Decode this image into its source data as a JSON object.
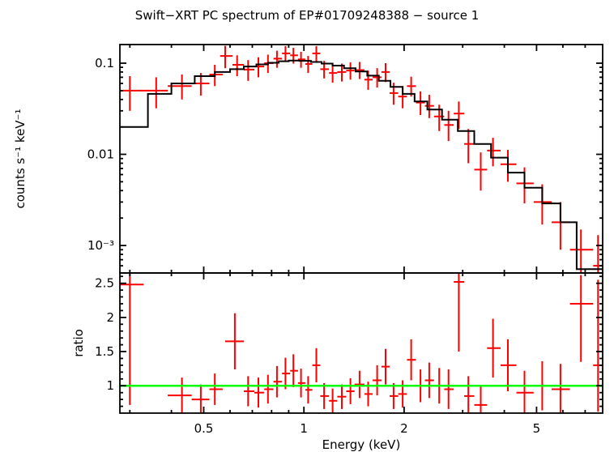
{
  "chart_data": {
    "type": "scatter",
    "title": "Swift−XRT PC spectrum of EP#01709248388 − source 1",
    "xlabel": "Energy (keV)",
    "xscale": "log",
    "xlim": [
      0.28,
      7.9
    ],
    "xticks": [
      0.5,
      1,
      2,
      5
    ],
    "xtick_labels": [
      "0.5",
      "1",
      "2",
      "5"
    ],
    "grid": false,
    "legend": "none",
    "colors": {
      "data": "#ff0000",
      "model": "#000000",
      "unity": "#00ff00",
      "frame": "#000000"
    },
    "panels": [
      {
        "name": "spectrum",
        "ylabel": "counts s⁻¹ keV⁻¹",
        "yscale": "log",
        "ylim": [
          0.0005,
          0.16
        ],
        "yticks": [
          0.1,
          0.01,
          0.001
        ],
        "ytick_labels": [
          "0.1",
          "0.01",
          "10⁻³"
        ],
        "data_points": [
          [
            0.3,
            0.28,
            0.33,
            0.05,
            0.03,
            0.072
          ],
          [
            0.36,
            0.33,
            0.39,
            0.05,
            0.032,
            0.07
          ],
          [
            0.43,
            0.39,
            0.46,
            0.056,
            0.04,
            0.075
          ],
          [
            0.49,
            0.46,
            0.52,
            0.06,
            0.044,
            0.078
          ],
          [
            0.54,
            0.52,
            0.57,
            0.075,
            0.056,
            0.096
          ],
          [
            0.58,
            0.56,
            0.61,
            0.12,
            0.088,
            0.155
          ],
          [
            0.63,
            0.61,
            0.66,
            0.096,
            0.072,
            0.122
          ],
          [
            0.68,
            0.66,
            0.71,
            0.085,
            0.064,
            0.108
          ],
          [
            0.73,
            0.71,
            0.76,
            0.092,
            0.07,
            0.116
          ],
          [
            0.78,
            0.76,
            0.81,
            0.1,
            0.078,
            0.124
          ],
          [
            0.83,
            0.81,
            0.86,
            0.112,
            0.089,
            0.137
          ],
          [
            0.88,
            0.86,
            0.91,
            0.128,
            0.104,
            0.154
          ],
          [
            0.93,
            0.91,
            0.96,
            0.122,
            0.099,
            0.147
          ],
          [
            0.98,
            0.96,
            1.01,
            0.11,
            0.089,
            0.133
          ],
          [
            1.03,
            1.01,
            1.06,
            0.098,
            0.078,
            0.12
          ],
          [
            1.09,
            1.06,
            1.12,
            0.128,
            0.104,
            0.154
          ],
          [
            1.15,
            1.12,
            1.19,
            0.086,
            0.068,
            0.106
          ],
          [
            1.22,
            1.19,
            1.26,
            0.078,
            0.061,
            0.097
          ],
          [
            1.3,
            1.26,
            1.34,
            0.08,
            0.063,
            0.099
          ],
          [
            1.38,
            1.34,
            1.42,
            0.083,
            0.066,
            0.102
          ],
          [
            1.47,
            1.42,
            1.52,
            0.084,
            0.067,
            0.103
          ],
          [
            1.56,
            1.52,
            1.61,
            0.066,
            0.051,
            0.083
          ],
          [
            1.66,
            1.61,
            1.71,
            0.07,
            0.054,
            0.088
          ],
          [
            1.76,
            1.71,
            1.81,
            0.08,
            0.062,
            0.1
          ],
          [
            1.86,
            1.81,
            1.92,
            0.047,
            0.035,
            0.061
          ],
          [
            1.98,
            1.92,
            2.04,
            0.043,
            0.032,
            0.056
          ],
          [
            2.1,
            2.04,
            2.17,
            0.056,
            0.043,
            0.071
          ],
          [
            2.24,
            2.17,
            2.31,
            0.037,
            0.027,
            0.049
          ],
          [
            2.38,
            2.31,
            2.46,
            0.034,
            0.025,
            0.045
          ],
          [
            2.55,
            2.46,
            2.64,
            0.026,
            0.018,
            0.035
          ],
          [
            2.72,
            2.64,
            2.82,
            0.021,
            0.014,
            0.03
          ],
          [
            2.92,
            2.82,
            3.03,
            0.028,
            0.019,
            0.038
          ],
          [
            3.12,
            3.03,
            3.25,
            0.013,
            0.008,
            0.019
          ],
          [
            3.4,
            3.25,
            3.55,
            0.0068,
            0.004,
            0.0105
          ],
          [
            3.7,
            3.55,
            3.9,
            0.011,
            0.0074,
            0.0152
          ],
          [
            4.1,
            3.9,
            4.35,
            0.0078,
            0.005,
            0.0112
          ],
          [
            4.6,
            4.35,
            4.9,
            0.0048,
            0.0029,
            0.0072
          ],
          [
            5.2,
            4.9,
            5.55,
            0.003,
            0.0017,
            0.0047
          ],
          [
            5.9,
            5.55,
            6.3,
            0.0018,
            0.0009,
            0.003
          ],
          [
            6.8,
            6.3,
            7.4,
            0.0009,
            0.0005,
            0.0015
          ],
          [
            7.65,
            7.4,
            7.9,
            0.0006,
            0.00028,
            0.0013
          ]
        ],
        "model_steps": [
          [
            0.28,
            0.34,
            0.02
          ],
          [
            0.34,
            0.4,
            0.046
          ],
          [
            0.4,
            0.47,
            0.06
          ],
          [
            0.47,
            0.54,
            0.072
          ],
          [
            0.54,
            0.6,
            0.08
          ],
          [
            0.6,
            0.66,
            0.086
          ],
          [
            0.66,
            0.72,
            0.092
          ],
          [
            0.72,
            0.78,
            0.097
          ],
          [
            0.78,
            0.84,
            0.101
          ],
          [
            0.84,
            0.9,
            0.105
          ],
          [
            0.9,
            0.97,
            0.107
          ],
          [
            0.97,
            1.05,
            0.106
          ],
          [
            1.05,
            1.13,
            0.103
          ],
          [
            1.13,
            1.22,
            0.099
          ],
          [
            1.22,
            1.32,
            0.094
          ],
          [
            1.32,
            1.43,
            0.088
          ],
          [
            1.43,
            1.55,
            0.081
          ],
          [
            1.55,
            1.68,
            0.073
          ],
          [
            1.68,
            1.82,
            0.064
          ],
          [
            1.82,
            1.98,
            0.055
          ],
          [
            1.98,
            2.15,
            0.046
          ],
          [
            2.15,
            2.35,
            0.038
          ],
          [
            2.35,
            2.6,
            0.031
          ],
          [
            2.6,
            2.9,
            0.024
          ],
          [
            2.9,
            3.25,
            0.018
          ],
          [
            3.25,
            3.65,
            0.013
          ],
          [
            3.65,
            4.1,
            0.0092
          ],
          [
            4.1,
            4.6,
            0.0063
          ],
          [
            4.6,
            5.2,
            0.0043
          ],
          [
            5.2,
            5.9,
            0.0029
          ],
          [
            5.9,
            6.6,
            0.0018
          ],
          [
            6.6,
            7.9,
            0.00055
          ]
        ]
      },
      {
        "name": "ratio",
        "ylabel": "ratio",
        "yscale": "linear",
        "ylim": [
          0.6,
          2.65
        ],
        "yticks": [
          1,
          1.5,
          2,
          2.5
        ],
        "ytick_labels": [
          "1",
          "1.5",
          "2",
          "2.5"
        ],
        "reference_line": 1,
        "data_points": [
          [
            0.3,
            0.28,
            0.33,
            2.48,
            0.72,
            2.64
          ],
          [
            0.43,
            0.39,
            0.46,
            0.86,
            0.6,
            1.12
          ],
          [
            0.49,
            0.46,
            0.52,
            0.8,
            0.58,
            1.02
          ],
          [
            0.54,
            0.52,
            0.57,
            0.95,
            0.72,
            1.18
          ],
          [
            0.62,
            0.58,
            0.66,
            1.65,
            1.24,
            2.06
          ],
          [
            0.68,
            0.66,
            0.71,
            0.92,
            0.7,
            1.14
          ],
          [
            0.73,
            0.71,
            0.76,
            0.9,
            0.68,
            1.12
          ],
          [
            0.78,
            0.76,
            0.81,
            0.95,
            0.74,
            1.16
          ],
          [
            0.83,
            0.81,
            0.86,
            1.06,
            0.83,
            1.29
          ],
          [
            0.88,
            0.86,
            0.91,
            1.18,
            0.95,
            1.41
          ],
          [
            0.93,
            0.91,
            0.96,
            1.22,
            0.98,
            1.46
          ],
          [
            0.98,
            0.96,
            1.01,
            1.04,
            0.83,
            1.25
          ],
          [
            1.03,
            1.01,
            1.06,
            0.94,
            0.74,
            1.14
          ],
          [
            1.09,
            1.06,
            1.12,
            1.3,
            1.05,
            1.55
          ],
          [
            1.15,
            1.12,
            1.19,
            0.85,
            0.66,
            1.04
          ],
          [
            1.22,
            1.19,
            1.26,
            0.78,
            0.6,
            0.96
          ],
          [
            1.3,
            1.26,
            1.34,
            0.84,
            0.66,
            1.02
          ],
          [
            1.38,
            1.34,
            1.42,
            0.92,
            0.73,
            1.11
          ],
          [
            1.47,
            1.42,
            1.52,
            1.02,
            0.82,
            1.22
          ],
          [
            1.56,
            1.52,
            1.61,
            0.88,
            0.7,
            1.06
          ],
          [
            1.66,
            1.61,
            1.71,
            1.08,
            0.86,
            1.3
          ],
          [
            1.76,
            1.71,
            1.81,
            1.28,
            1.02,
            1.54
          ],
          [
            1.86,
            1.81,
            1.92,
            0.85,
            0.66,
            1.04
          ],
          [
            1.98,
            1.92,
            2.04,
            0.88,
            0.68,
            1.08
          ],
          [
            2.1,
            2.04,
            2.17,
            1.38,
            1.08,
            1.68
          ],
          [
            2.24,
            2.17,
            2.31,
            1.0,
            0.76,
            1.24
          ],
          [
            2.38,
            2.31,
            2.46,
            1.08,
            0.82,
            1.34
          ],
          [
            2.55,
            2.46,
            2.64,
            1.0,
            0.74,
            1.26
          ],
          [
            2.72,
            2.64,
            2.82,
            0.95,
            0.66,
            1.24
          ],
          [
            2.92,
            2.82,
            3.03,
            2.52,
            1.5,
            2.64
          ],
          [
            3.12,
            3.03,
            3.25,
            0.85,
            0.56,
            1.14
          ],
          [
            3.4,
            3.25,
            3.55,
            0.72,
            0.44,
            1.0
          ],
          [
            3.7,
            3.55,
            3.9,
            1.55,
            1.12,
            1.98
          ],
          [
            4.1,
            3.9,
            4.35,
            1.3,
            0.92,
            1.68
          ],
          [
            4.6,
            4.35,
            4.9,
            0.9,
            0.58,
            1.22
          ],
          [
            5.2,
            4.9,
            5.55,
            1.0,
            0.64,
            1.36
          ],
          [
            5.9,
            5.55,
            6.3,
            0.95,
            0.58,
            1.32
          ],
          [
            6.8,
            6.3,
            7.4,
            2.2,
            1.35,
            2.62
          ],
          [
            7.65,
            7.4,
            7.9,
            1.3,
            0.62,
            2.55
          ]
        ]
      }
    ]
  }
}
